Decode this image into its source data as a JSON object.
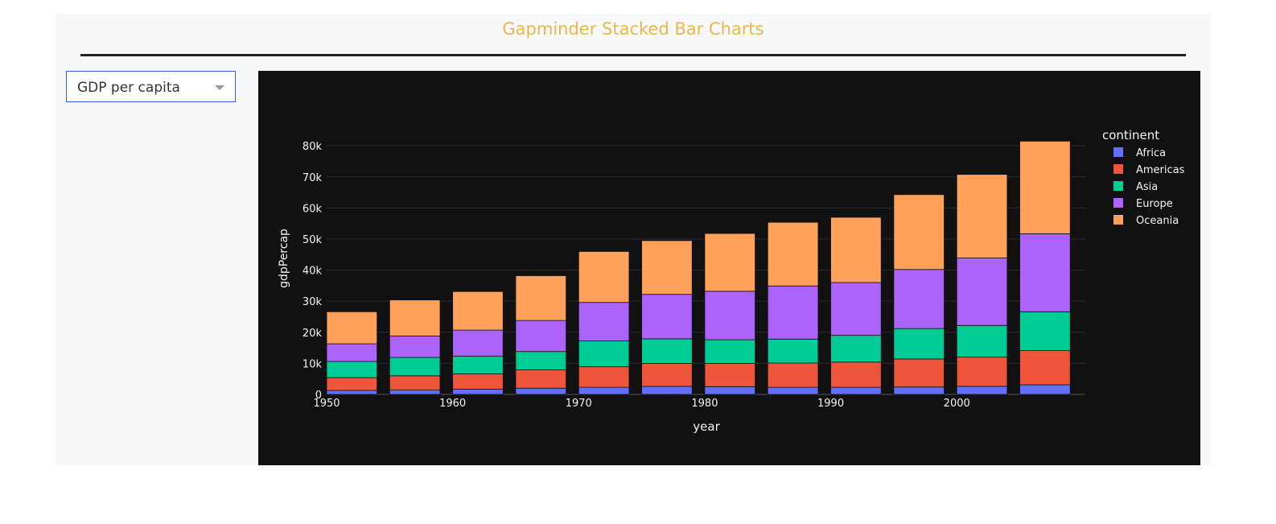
{
  "header": {
    "title": "Gapminder Stacked Bar Charts"
  },
  "dropdown": {
    "selected": "GDP per capita"
  },
  "colors": {
    "Africa": "#636efa",
    "Americas": "#ef553b",
    "Asia": "#00cc96",
    "Europe": "#ab63fa",
    "Oceania": "#ffa15a"
  },
  "chart_data": {
    "type": "bar",
    "stacked": true,
    "xlabel": "year",
    "ylabel": "gdpPercap",
    "legend_title": "continent",
    "legend_position": "top-right",
    "grid": true,
    "ylim": [
      0,
      86000
    ],
    "xticks": [
      1950,
      1960,
      1970,
      1980,
      1990,
      2000
    ],
    "yticks": [
      0,
      10000,
      20000,
      30000,
      40000,
      50000,
      60000,
      70000,
      80000
    ],
    "ytick_labels": [
      "0",
      "10k",
      "20k",
      "30k",
      "40k",
      "50k",
      "60k",
      "70k",
      "80k"
    ],
    "categories": [
      1952,
      1957,
      1962,
      1967,
      1972,
      1977,
      1982,
      1987,
      1992,
      1997,
      2002,
      2007
    ],
    "series": [
      {
        "name": "Africa",
        "values": [
          1300,
          1400,
          1700,
          2000,
          2300,
          2600,
          2500,
          2300,
          2300,
          2400,
          2600,
          3100
        ]
      },
      {
        "name": "Americas",
        "values": [
          4100,
          4600,
          4900,
          5900,
          6600,
          7400,
          7500,
          7800,
          8100,
          9000,
          9400,
          11000
        ]
      },
      {
        "name": "Asia",
        "values": [
          5200,
          5900,
          5700,
          5900,
          8300,
          7900,
          7600,
          7700,
          8600,
          9800,
          10200,
          12500
        ]
      },
      {
        "name": "Europe",
        "values": [
          5700,
          6900,
          8400,
          10000,
          12400,
          14300,
          15600,
          17100,
          17000,
          19000,
          21700,
          25100
        ]
      },
      {
        "name": "Oceania",
        "values": [
          10300,
          11600,
          12400,
          14400,
          16400,
          17300,
          18600,
          20500,
          21000,
          24100,
          26900,
          29800
        ]
      }
    ]
  }
}
